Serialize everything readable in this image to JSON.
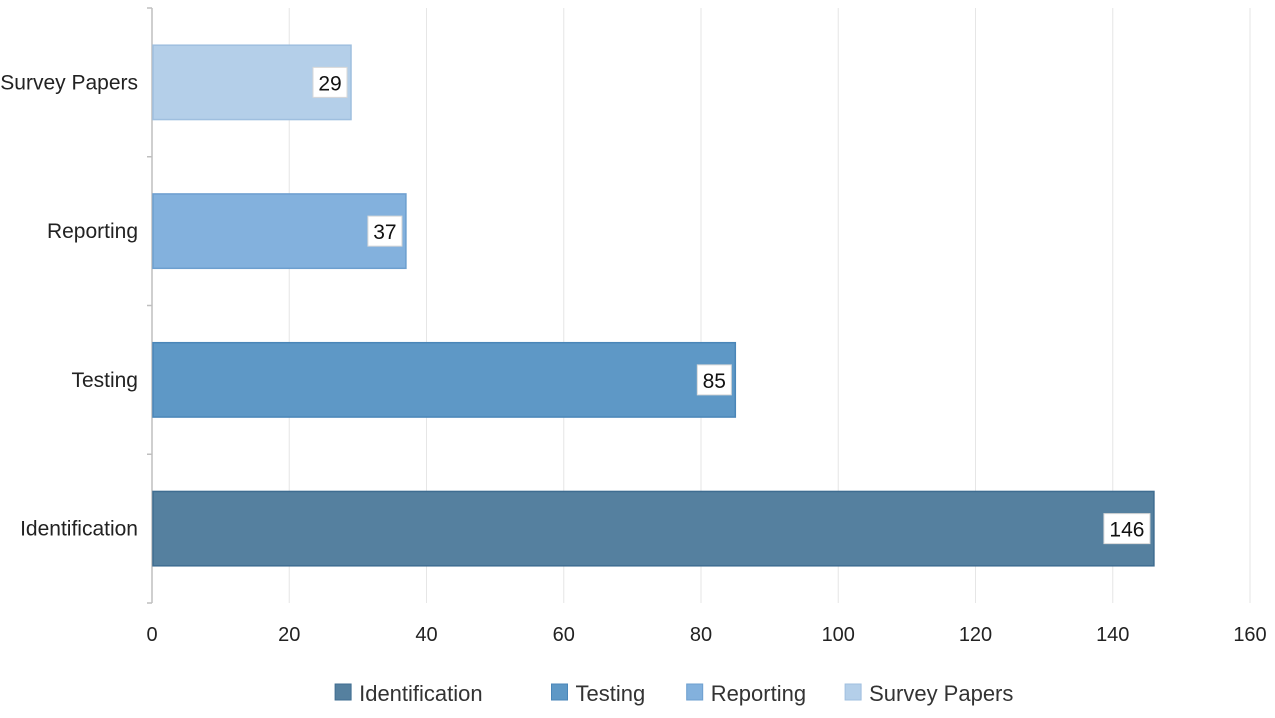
{
  "chart_data": {
    "type": "bar",
    "orientation": "horizontal",
    "categories": [
      "Identification",
      "Testing",
      "Reporting",
      "Survey Papers"
    ],
    "values": [
      146,
      85,
      37,
      29
    ],
    "title": "",
    "xlabel": "",
    "ylabel": "",
    "xlim": [
      0,
      160
    ],
    "x_ticks": [
      0,
      20,
      40,
      60,
      80,
      100,
      120,
      140,
      160
    ],
    "grid": "vertical",
    "legend_position": "bottom",
    "data_labels": [
      "146",
      "85",
      "37",
      "29"
    ],
    "colors": [
      "#55809f",
      "#5e98c6",
      "#83b1dd",
      "#b4cfe9"
    ],
    "stroke_colors": [
      "#3f6d91",
      "#4a86b8",
      "#6d9fcf",
      "#9fbfdf"
    ],
    "legend": [
      {
        "label": "Identification",
        "color": "#55809f"
      },
      {
        "label": "Testing",
        "color": "#5e98c6"
      },
      {
        "label": "Reporting",
        "color": "#83b1dd"
      },
      {
        "label": "Survey Papers",
        "color": "#b4cfe9"
      }
    ]
  }
}
